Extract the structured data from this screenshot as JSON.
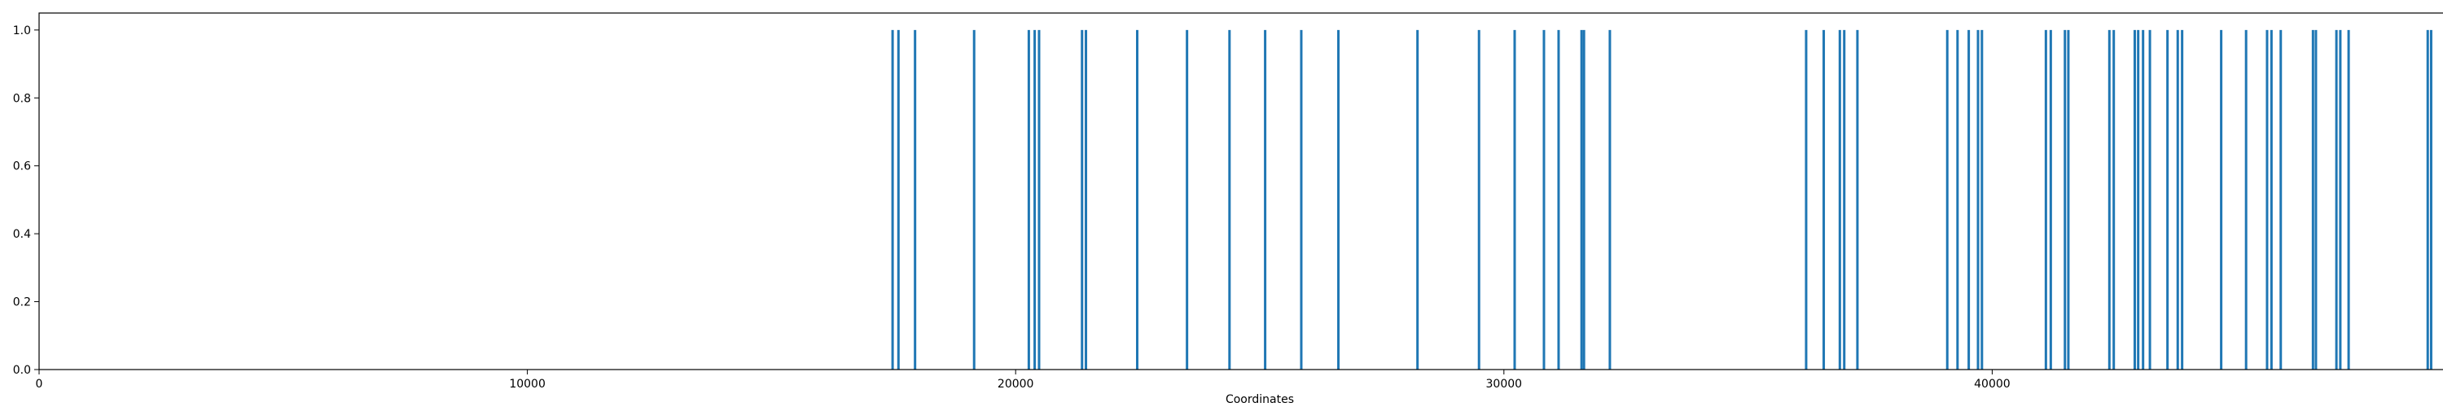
{
  "chart_data": {
    "type": "bar",
    "title": "",
    "xlabel": "Coordinates",
    "ylabel": "",
    "xlim": [
      0,
      50000
    ],
    "ylim": [
      0,
      1.05
    ],
    "grid": false,
    "bar_color": "#1f77b4",
    "x_ticks": [
      {
        "value": 0,
        "label": "0"
      },
      {
        "value": 10000,
        "label": "10000"
      },
      {
        "value": 20000,
        "label": "20000"
      },
      {
        "value": 30000,
        "label": "30000"
      },
      {
        "value": 40000,
        "label": "40000"
      },
      {
        "value": 50000,
        "label": "50000"
      }
    ],
    "y_ticks": [
      {
        "value": 0.0,
        "label": "0.0"
      },
      {
        "value": 0.2,
        "label": "0.2"
      },
      {
        "value": 0.4,
        "label": "0.4"
      },
      {
        "value": 0.6,
        "label": "0.6"
      },
      {
        "value": 0.8,
        "label": "0.8"
      },
      {
        "value": 1.0,
        "label": "1.0"
      }
    ],
    "x": [
      17480,
      17600,
      17940,
      19150,
      20270,
      20390,
      20480,
      21360,
      21440,
      22490,
      23510,
      24380,
      25110,
      25850,
      26610,
      28230,
      29490,
      30220,
      30820,
      31120,
      31590,
      31640,
      32170,
      36190,
      36550,
      36880,
      36970,
      37240,
      39080,
      39290,
      39520,
      39710,
      39790,
      41100,
      41200,
      41490,
      41560,
      42400,
      42490,
      42920,
      42990,
      43090,
      43230,
      43590,
      43800,
      43890,
      44690,
      45200,
      45630,
      45720,
      45910,
      46570,
      46630,
      47050,
      47130,
      47300,
      48920,
      48990,
      49880,
      49920
    ],
    "values": [
      1,
      1,
      1,
      1,
      1,
      1,
      1,
      1,
      1,
      1,
      1,
      1,
      1,
      1,
      1,
      1,
      1,
      1,
      1,
      1,
      1,
      1,
      1,
      1,
      1,
      1,
      1,
      1,
      1,
      1,
      1,
      1,
      1,
      1,
      1,
      1,
      1,
      1,
      1,
      1,
      1,
      1,
      1,
      1,
      1,
      1,
      1,
      1,
      1,
      1,
      1,
      1,
      1,
      1,
      1,
      1,
      1,
      1,
      1,
      1
    ]
  }
}
